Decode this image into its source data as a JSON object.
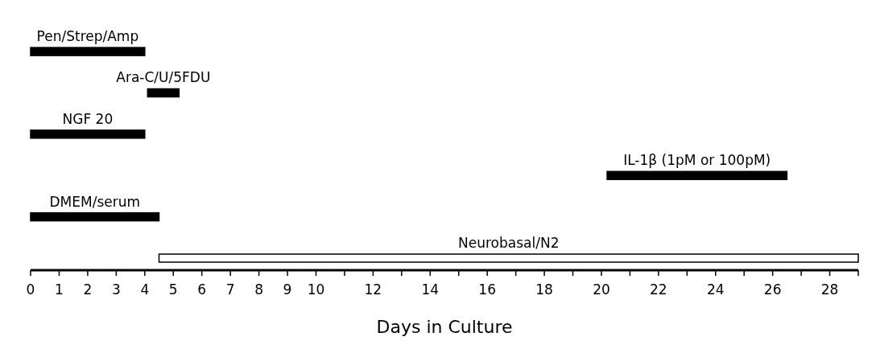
{
  "chart_data": {
    "type": "bar",
    "orientation": "horizontal",
    "xlabel": "Days in Culture",
    "categories": [
      "Pen/Strep/Amp",
      "Ara-C/U/5FDU",
      "NGF 20",
      "IL-1β (1pM or 100pM)",
      "DMEM/serum",
      "Neurobasal/N2"
    ],
    "base": [
      0,
      4.1,
      0,
      20.2,
      0,
      4.5
    ],
    "values": [
      4,
      1.1,
      4,
      6.3,
      4.5,
      24.5
    ],
    "colors": [
      "#000000",
      "#000000",
      "#000000",
      "#000000",
      "#000000",
      "#ffffff"
    ],
    "xlim": [
      0,
      29
    ],
    "xticks": [
      0,
      1,
      2,
      3,
      4,
      5,
      6,
      7,
      8,
      9,
      10,
      {
        "value": 11,
        "label": null
      },
      12,
      {
        "value": 13,
        "label": null
      },
      14,
      {
        "value": 15,
        "label": null
      },
      16,
      {
        "value": 17,
        "label": null
      },
      18,
      {
        "value": 19,
        "label": null
      },
      20,
      {
        "value": 21,
        "label": null
      },
      22,
      {
        "value": 23,
        "label": null
      },
      24,
      {
        "value": 25,
        "label": null
      },
      26,
      {
        "value": 27,
        "label": null
      },
      28,
      {
        "value": 29,
        "label": null
      }
    ],
    "tick_labels": "x"
  }
}
